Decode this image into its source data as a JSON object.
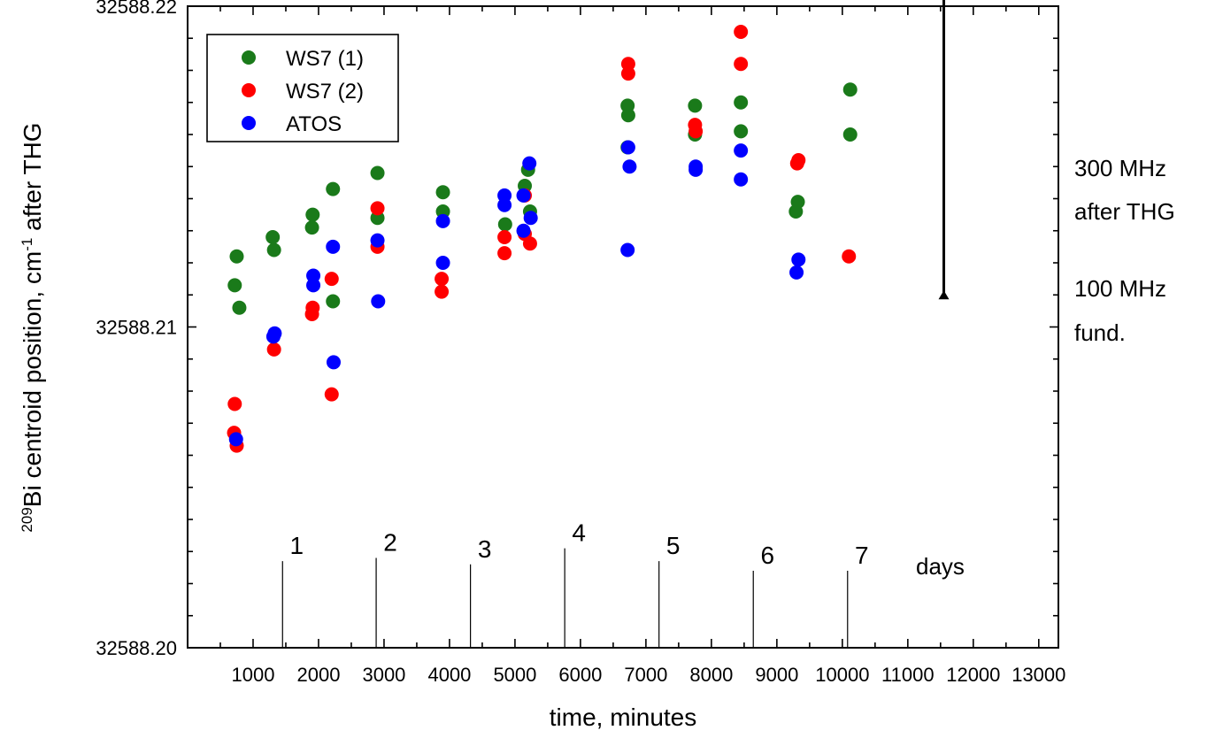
{
  "chart_data": {
    "type": "scatter",
    "xlabel": "time, minutes",
    "ylabel_parts": {
      "sup": "209",
      "a": "Bi centroid position, cm",
      "sup2": "-1",
      "b": " after THG"
    },
    "xlim": [
      0,
      13300
    ],
    "ylim": [
      32588.2,
      32588.22
    ],
    "xticks": [
      1000,
      2000,
      3000,
      4000,
      5000,
      6000,
      7000,
      8000,
      9000,
      10000,
      11000,
      12000,
      13000
    ],
    "xtick_labels": [
      "1000",
      "2000",
      "3000",
      "4000",
      "5000",
      "6000",
      "7000",
      "8000",
      "9000",
      "10000",
      "11000",
      "12000",
      "13000"
    ],
    "yticks": [
      32588.2,
      32588.21,
      32588.22
    ],
    "ytick_labels": [
      "32588.20",
      "32588.21",
      "32588.22"
    ],
    "legend_position": "top-left",
    "grid": false,
    "series": [
      {
        "name": "WS7 (1)",
        "color": "#1a7a1a",
        "points": [
          [
            750,
            32588.2122
          ],
          [
            720,
            32588.2113
          ],
          [
            790,
            32588.2106
          ],
          [
            1300,
            32588.2128
          ],
          [
            1320,
            32588.2124
          ],
          [
            1900,
            32588.2131
          ],
          [
            1910,
            32588.2135
          ],
          [
            2220,
            32588.2143
          ],
          [
            2220,
            32588.2108
          ],
          [
            2900,
            32588.2134
          ],
          [
            2900,
            32588.2148
          ],
          [
            3900,
            32588.2142
          ],
          [
            3900,
            32588.2136
          ],
          [
            4850,
            32588.2132
          ],
          [
            5150,
            32588.2144
          ],
          [
            5200,
            32588.2149
          ],
          [
            5230,
            32588.2136
          ],
          [
            6720,
            32588.2169
          ],
          [
            6730,
            32588.2166
          ],
          [
            6720,
            32588.2156
          ],
          [
            7750,
            32588.2169
          ],
          [
            7750,
            32588.216
          ],
          [
            8450,
            32588.217
          ],
          [
            8450,
            32588.2161
          ],
          [
            9290,
            32588.2136
          ],
          [
            9320,
            32588.2139
          ],
          [
            10120,
            32588.2174
          ],
          [
            10120,
            32588.216
          ]
        ]
      },
      {
        "name": "WS7 (2)",
        "color": "#ff0000",
        "points": [
          [
            720,
            32588.2076
          ],
          [
            710,
            32588.2067
          ],
          [
            750,
            32588.2063
          ],
          [
            1320,
            32588.2093
          ],
          [
            1900,
            32588.2104
          ],
          [
            1910,
            32588.2106
          ],
          [
            2200,
            32588.2115
          ],
          [
            2200,
            32588.2079
          ],
          [
            2900,
            32588.2137
          ],
          [
            2900,
            32588.2125
          ],
          [
            3880,
            32588.2115
          ],
          [
            3880,
            32588.2111
          ],
          [
            4840,
            32588.2128
          ],
          [
            4840,
            32588.2123
          ],
          [
            5150,
            32588.2141
          ],
          [
            5150,
            32588.2129
          ],
          [
            5230,
            32588.2126
          ],
          [
            6730,
            32588.2182
          ],
          [
            6730,
            32588.2179
          ],
          [
            7750,
            32588.2163
          ],
          [
            7760,
            32588.2161
          ],
          [
            8450,
            32588.2192
          ],
          [
            8450,
            32588.2182
          ],
          [
            9310,
            32588.2151
          ],
          [
            9330,
            32588.2152
          ],
          [
            10100,
            32588.2122
          ]
        ]
      },
      {
        "name": "ATOS",
        "color": "#0000ff",
        "points": [
          [
            740,
            32588.2065
          ],
          [
            1330,
            32588.2098
          ],
          [
            1310,
            32588.2097
          ],
          [
            1920,
            32588.2116
          ],
          [
            1920,
            32588.2113
          ],
          [
            2220,
            32588.2125
          ],
          [
            2230,
            32588.2089
          ],
          [
            2900,
            32588.2127
          ],
          [
            2910,
            32588.2108
          ],
          [
            3900,
            32588.2133
          ],
          [
            3900,
            32588.212
          ],
          [
            4840,
            32588.2141
          ],
          [
            4840,
            32588.2138
          ],
          [
            5130,
            32588.2141
          ],
          [
            5130,
            32588.213
          ],
          [
            5220,
            32588.2151
          ],
          [
            5240,
            32588.2134
          ],
          [
            6730,
            32588.2156
          ],
          [
            6750,
            32588.215
          ],
          [
            6720,
            32588.2124
          ],
          [
            7760,
            32588.215
          ],
          [
            7760,
            32588.2149
          ],
          [
            8450,
            32588.2155
          ],
          [
            8450,
            32588.2146
          ],
          [
            9300,
            32588.2117
          ],
          [
            9330,
            32588.2121
          ]
        ]
      }
    ],
    "day_markers": [
      {
        "label": "1",
        "x": 1450,
        "y_top": 32588.2027
      },
      {
        "label": "2",
        "x": 2880,
        "y_top": 32588.2028
      },
      {
        "label": "3",
        "x": 4320,
        "y_top": 32588.2026
      },
      {
        "label": "4",
        "x": 5760,
        "y_top": 32588.2031
      },
      {
        "label": "5",
        "x": 7200,
        "y_top": 32588.2027
      },
      {
        "label": "6",
        "x": 8640,
        "y_top": 32588.2024
      },
      {
        "label": "7",
        "x": 10080,
        "y_top": 32588.2024
      }
    ],
    "days_label": "days",
    "range_arrow": {
      "x": 11550,
      "y_low": 32588.211,
      "y_high": 32588.2222
    },
    "annotations": [
      "300 MHz",
      "after THG",
      "100 MHz",
      "fund."
    ]
  }
}
